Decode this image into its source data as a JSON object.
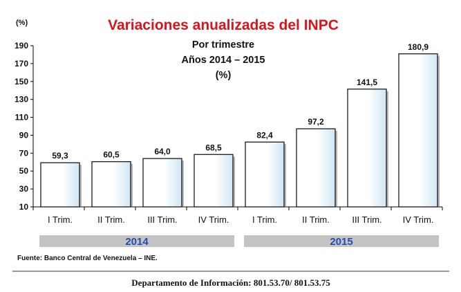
{
  "chart_data": {
    "type": "bar",
    "title": "Variaciones anualizadas del INPC",
    "subtitle_lines": [
      "Por trimestre",
      "Años 2014 – 2015",
      "(%)"
    ],
    "y_unit_label": "(%)",
    "categories": [
      "I Trim.",
      "II Trim.",
      "III Trim.",
      "IV Trim.",
      "I Trim.",
      "II Trim.",
      "III Trim.",
      "IV Trim."
    ],
    "values": [
      59.3,
      60.5,
      64.0,
      68.5,
      82.4,
      97.2,
      141.5,
      180.9
    ],
    "value_labels": [
      "59,3",
      "60,5",
      "64,0",
      "68,5",
      "82,4",
      "97,2",
      "141,5",
      "180,9"
    ],
    "ylim": [
      10,
      190
    ],
    "yticks": [
      10,
      30,
      50,
      70,
      90,
      110,
      130,
      150,
      170,
      190
    ],
    "groups": [
      {
        "label": "2014",
        "first": 0,
        "last": 3
      },
      {
        "label": "2015",
        "first": 4,
        "last": 7
      }
    ],
    "grid": false,
    "legend": "none"
  },
  "source": "Fuente: Banco Central de Venezuela – INE.",
  "footer": "Departamento de Información: 801.53.70/ 801.53.75",
  "colors": {
    "title": "#d9141a",
    "year_label": "#1f4fa8",
    "group_band": "#c4c4c4",
    "bar_fill_light": "#ffffff",
    "bar_fill_dark": "#cfe6f5",
    "bar_stroke": "#1a1a1a"
  }
}
